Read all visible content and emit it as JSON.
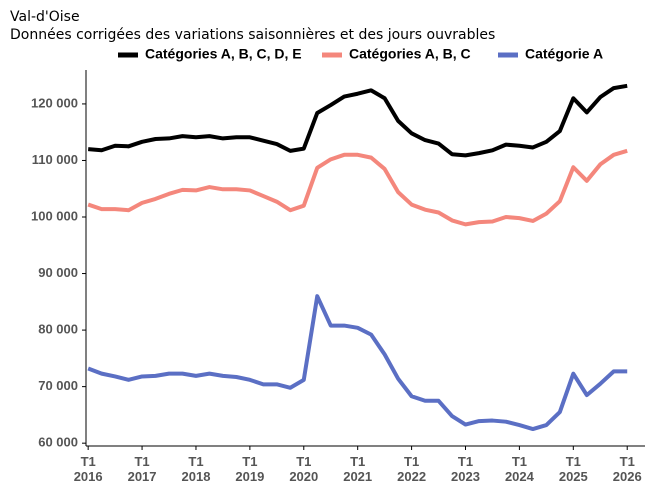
{
  "chart_data": {
    "type": "line",
    "title": "Val-d'Oise",
    "subtitle": "Données corrigées des variations saisonnières et des jours ouvrables",
    "x": [
      2016,
      2016.25,
      2016.5,
      2016.75,
      2017,
      2017.25,
      2017.5,
      2017.75,
      2018,
      2018.25,
      2018.5,
      2018.75,
      2019,
      2019.25,
      2019.5,
      2019.75,
      2020,
      2020.25,
      2020.5,
      2020.75,
      2021,
      2021.25,
      2021.5,
      2021.75,
      2022,
      2022.25,
      2022.5,
      2022.75,
      2023,
      2023.25,
      2023.5,
      2023.75,
      2024,
      2024.25,
      2024.5,
      2024.75,
      2025,
      2025.25,
      2025.5,
      2025.75,
      2026
    ],
    "series": [
      {
        "name": "Catégories A, B, C, D, E",
        "color": "#000000",
        "values": [
          112000,
          111800,
          112600,
          112500,
          113300,
          113800,
          113900,
          114300,
          114100,
          114300,
          113900,
          114100,
          114100,
          113500,
          112900,
          111700,
          112100,
          118400,
          119800,
          121300,
          121800,
          122400,
          121000,
          117000,
          114800,
          113600,
          113000,
          111100,
          110900,
          111300,
          111800,
          112800,
          112600,
          112300,
          113300,
          115200,
          121000,
          118500,
          121200,
          122800,
          123200
        ]
      },
      {
        "name": "Catégories A, B, C",
        "color": "#f4877c",
        "values": [
          102200,
          101400,
          101400,
          101200,
          102500,
          103200,
          104100,
          104800,
          104700,
          105300,
          104900,
          104900,
          104700,
          103700,
          102700,
          101200,
          102000,
          108700,
          110200,
          111000,
          111000,
          110500,
          108500,
          104400,
          102200,
          101300,
          100800,
          99400,
          98700,
          99100,
          99200,
          100000,
          99800,
          99300,
          100600,
          102800,
          108800,
          106400,
          109300,
          111000,
          111700
        ]
      },
      {
        "name": "Catégorie A",
        "color": "#5b6fc4",
        "values": [
          73200,
          72300,
          71800,
          71200,
          71800,
          71900,
          72300,
          72300,
          71900,
          72300,
          71900,
          71700,
          71200,
          70400,
          70400,
          69800,
          71200,
          86000,
          80800,
          80800,
          80400,
          79200,
          75700,
          71400,
          68300,
          67500,
          67500,
          64800,
          63300,
          63900,
          64000,
          63800,
          63200,
          62500,
          63200,
          65500,
          72300,
          68500,
          70500,
          72700,
          72700
        ]
      }
    ],
    "xlim": [
      2015.96,
      2026.33
    ],
    "xticks": [
      {
        "value": 2016,
        "label": "T1 2016"
      },
      {
        "value": 2017,
        "label": "T1 2017"
      },
      {
        "value": 2018,
        "label": "T1 2018"
      },
      {
        "value": 2019,
        "label": "T1 2019"
      },
      {
        "value": 2020,
        "label": "T1 2020"
      },
      {
        "value": 2021,
        "label": "T1 2021"
      },
      {
        "value": 2022,
        "label": "T1 2022"
      },
      {
        "value": 2023,
        "label": "T1 2023"
      },
      {
        "value": 2024,
        "label": "T1 2024"
      },
      {
        "value": 2025,
        "label": "T1 2025"
      },
      {
        "value": 2026,
        "label": "T1 2026"
      }
    ],
    "ylim": [
      59500,
      126000
    ],
    "yticks": [
      {
        "value": 60000,
        "label": "60 000"
      },
      {
        "value": 70000,
        "label": "70 000"
      },
      {
        "value": 80000,
        "label": "80 000"
      },
      {
        "value": 90000,
        "label": "90 000"
      },
      {
        "value": 100000,
        "label": "100 000"
      },
      {
        "value": 110000,
        "label": "110 000"
      },
      {
        "value": 120000,
        "label": "120 000"
      }
    ],
    "legend": "top"
  }
}
